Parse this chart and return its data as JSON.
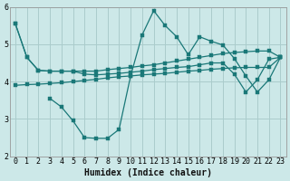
{
  "xlabel": "Humidex (Indice chaleur)",
  "bg_color": "#cce8e8",
  "grid_color": "#aacccc",
  "line_color": "#1a7878",
  "xlim": [
    -0.5,
    23.5
  ],
  "ylim": [
    2,
    6
  ],
  "yticks": [
    2,
    3,
    4,
    5,
    6
  ],
  "xticks": [
    0,
    1,
    2,
    3,
    4,
    5,
    6,
    7,
    8,
    9,
    10,
    11,
    12,
    13,
    14,
    15,
    16,
    17,
    18,
    19,
    20,
    21,
    22,
    23
  ],
  "lines": [
    {
      "x": [
        0,
        1,
        2,
        3,
        4,
        5,
        6,
        7,
        8,
        9,
        10,
        11,
        12,
        13,
        14,
        15,
        16,
        17,
        18,
        19,
        20,
        21,
        22,
        23
      ],
      "y": [
        5.55,
        4.65,
        4.3,
        4.28,
        4.28,
        4.28,
        4.28,
        4.28,
        4.32,
        4.35,
        4.38,
        4.42,
        4.45,
        4.5,
        4.55,
        4.6,
        4.65,
        4.7,
        4.75,
        4.78,
        4.8,
        4.82,
        4.82,
        4.65
      ]
    },
    {
      "x": [
        0,
        1,
        2,
        3,
        4,
        5,
        6,
        7,
        8,
        9,
        10,
        11,
        12,
        13,
        14,
        15,
        16,
        17,
        18,
        19,
        20,
        21,
        22,
        23
      ],
      "y": [
        5.55,
        4.65,
        4.3,
        4.28,
        4.28,
        4.28,
        4.2,
        4.18,
        4.2,
        4.22,
        4.25,
        4.28,
        4.32,
        4.35,
        4.38,
        4.4,
        4.45,
        4.5,
        4.5,
        4.2,
        3.72,
        4.05,
        4.6,
        4.65
      ]
    },
    {
      "x": [
        3,
        4,
        5,
        6,
        7,
        8,
        9,
        10,
        11,
        12,
        13,
        14,
        15,
        16,
        17,
        18,
        19,
        20,
        21,
        22,
        23
      ],
      "y": [
        3.55,
        3.32,
        2.95,
        2.5,
        2.48,
        2.48,
        2.72,
        4.15,
        5.25,
        5.9,
        5.5,
        5.2,
        4.72,
        5.2,
        5.08,
        4.98,
        4.62,
        4.15,
        3.72,
        4.05,
        4.65
      ]
    },
    {
      "x": [
        0,
        1,
        2,
        3,
        4,
        5,
        6,
        7,
        8,
        9,
        10,
        11,
        12,
        13,
        14,
        15,
        16,
        17,
        18,
        19,
        20,
        21,
        22,
        23
      ],
      "y": [
        3.9,
        3.92,
        3.93,
        3.95,
        3.97,
        4.0,
        4.03,
        4.06,
        4.1,
        4.13,
        4.15,
        4.18,
        4.2,
        4.22,
        4.25,
        4.28,
        4.3,
        4.33,
        4.35,
        4.37,
        4.38,
        4.38,
        4.38,
        4.65
      ]
    }
  ],
  "marker": "s",
  "marker_size": 2.5
}
